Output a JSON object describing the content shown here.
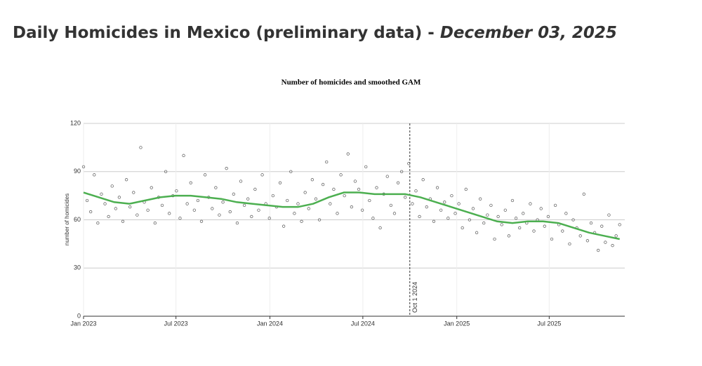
{
  "header": {
    "title": "Daily Homicides in Mexico (preliminary data) - ",
    "date": "December 03, 2025"
  },
  "chart_data": {
    "type": "scatter",
    "title": "Number of homicides and smoothed GAM",
    "y_label": "number of homicides",
    "xlim": [
      0,
      1060
    ],
    "ylim": [
      0,
      120
    ],
    "xticks": [
      {
        "value": 0,
        "label": "Jan 2023"
      },
      {
        "value": 181,
        "label": "Jul 2023"
      },
      {
        "value": 365,
        "label": "Jan 2024"
      },
      {
        "value": 547,
        "label": "Jul 2024"
      },
      {
        "value": 731,
        "label": "Jan 2025"
      },
      {
        "value": 912,
        "label": "Jul 2025"
      }
    ],
    "yticks": [
      0,
      30,
      60,
      90,
      120
    ],
    "grid": true,
    "annotation": {
      "x": 639,
      "label": "Oct 1 2024"
    },
    "points": {
      "color": "#555555",
      "x": [
        0,
        7,
        14,
        21,
        28,
        35,
        42,
        49,
        56,
        63,
        70,
        77,
        84,
        91,
        98,
        105,
        112,
        119,
        126,
        133,
        140,
        147,
        154,
        161,
        168,
        175,
        182,
        189,
        196,
        203,
        210,
        217,
        224,
        231,
        238,
        245,
        252,
        259,
        266,
        273,
        280,
        287,
        294,
        301,
        308,
        315,
        322,
        329,
        336,
        343,
        350,
        357,
        364,
        371,
        378,
        385,
        392,
        399,
        406,
        413,
        420,
        427,
        434,
        441,
        448,
        455,
        462,
        469,
        476,
        483,
        490,
        497,
        504,
        511,
        518,
        525,
        532,
        539,
        546,
        553,
        560,
        567,
        574,
        581,
        588,
        595,
        602,
        609,
        616,
        623,
        630,
        637,
        644,
        651,
        658,
        665,
        672,
        679,
        686,
        693,
        700,
        707,
        714,
        721,
        728,
        735,
        742,
        749,
        756,
        763,
        770,
        777,
        784,
        791,
        798,
        805,
        812,
        819,
        826,
        833,
        840,
        847,
        854,
        861,
        868,
        875,
        882,
        889,
        896,
        903,
        910,
        917,
        924,
        931,
        938,
        945,
        952,
        959,
        966,
        973,
        980,
        987,
        994,
        1001,
        1008,
        1015,
        1022,
        1029,
        1036,
        1043,
        1050
      ],
      "y": [
        93,
        72,
        65,
        88,
        58,
        76,
        70,
        62,
        81,
        67,
        74,
        59,
        85,
        68,
        77,
        63,
        105,
        71,
        66,
        80,
        58,
        74,
        69,
        90,
        64,
        75,
        78,
        61,
        100,
        70,
        83,
        66,
        72,
        59,
        88,
        74,
        67,
        80,
        63,
        71,
        92,
        65,
        76,
        58,
        84,
        69,
        73,
        62,
        79,
        66,
        88,
        70,
        61,
        75,
        68,
        83,
        56,
        72,
        90,
        64,
        70,
        59,
        77,
        67,
        85,
        73,
        60,
        82,
        96,
        70,
        79,
        64,
        88,
        75,
        101,
        68,
        84,
        79,
        66,
        93,
        72,
        61,
        80,
        55,
        76,
        87,
        69,
        64,
        83,
        90,
        74,
        95,
        70,
        78,
        62,
        85,
        68,
        73,
        59,
        80,
        66,
        71,
        61,
        75,
        64,
        70,
        55,
        79,
        60,
        67,
        52,
        73,
        58,
        63,
        69,
        48,
        62,
        57,
        66,
        50,
        72,
        61,
        55,
        64,
        58,
        70,
        53,
        60,
        67,
        56,
        62,
        48,
        69,
        57,
        53,
        64,
        45,
        60,
        55,
        50,
        76,
        47,
        58,
        52,
        41,
        56,
        46,
        63,
        44,
        50,
        57
      ]
    },
    "gam": {
      "color": "#4caf50",
      "x": [
        0,
        30,
        60,
        90,
        120,
        150,
        180,
        210,
        240,
        270,
        300,
        330,
        360,
        390,
        420,
        450,
        480,
        510,
        540,
        570,
        600,
        630,
        660,
        690,
        720,
        750,
        780,
        810,
        840,
        870,
        900,
        930,
        960,
        990,
        1020,
        1050
      ],
      "y": [
        77,
        74,
        71,
        70,
        72,
        74,
        75,
        75,
        74,
        73,
        71,
        70,
        69,
        68,
        68,
        70,
        74,
        77,
        77,
        76,
        76,
        76,
        74,
        71,
        68,
        65,
        62,
        59,
        58,
        59,
        59,
        58,
        55,
        52,
        50,
        48
      ]
    }
  }
}
